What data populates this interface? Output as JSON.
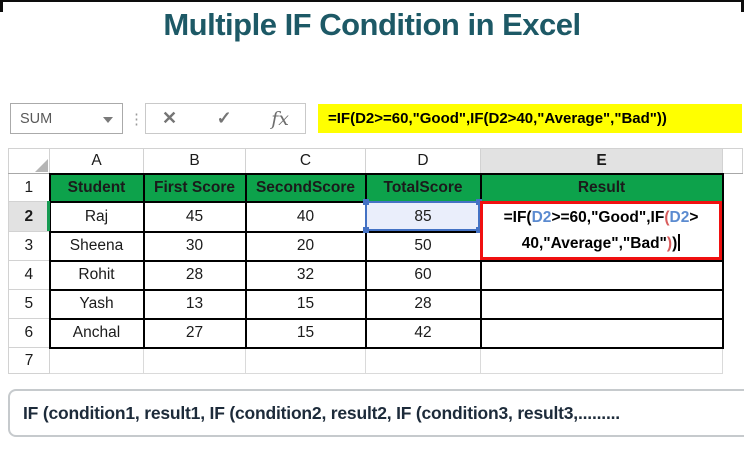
{
  "title": "Multiple IF Condition in Excel",
  "formula_bar": {
    "name_box_value": "SUM",
    "dots_separator": "⋮",
    "cancel_icon": "✕",
    "enter_icon": "✓",
    "fx_icon": "fx",
    "formula": "=IF(D2>=60,\"Good\",IF(D2>40,\"Average\",\"Bad\"))"
  },
  "grid": {
    "column_headers": [
      "A",
      "B",
      "C",
      "D",
      "E"
    ],
    "row_headers": [
      "1",
      "2",
      "3",
      "4",
      "5",
      "6",
      "7"
    ],
    "header_row": [
      "Student",
      "First Score",
      "SecondScore",
      "TotalScore",
      "Result"
    ],
    "rows": [
      [
        "Raj",
        "45",
        "40",
        "85"
      ],
      [
        "Sheena",
        "30",
        "20",
        "50"
      ],
      [
        "Rohit",
        "28",
        "32",
        "60"
      ],
      [
        "Yash",
        "13",
        "15",
        "28"
      ],
      [
        "Anchal",
        "27",
        "15",
        "42"
      ]
    ],
    "active_cell": "E2",
    "referenced_cell": "D2",
    "cell_formula": {
      "line1": [
        {
          "t": "=IF(",
          "c": "k"
        },
        {
          "t": "D2",
          "c": "b"
        },
        {
          "t": ">=60,\"Good\",IF",
          "c": "k"
        },
        {
          "t": "(",
          "c": "r"
        },
        {
          "t": "D2",
          "c": "b"
        },
        {
          "t": ">",
          "c": "k"
        }
      ],
      "line2": [
        {
          "t": "40,\"Average\",\"Bad\"",
          "c": "k"
        },
        {
          "t": ")",
          "c": "r"
        },
        {
          "t": ")",
          "c": "k"
        }
      ]
    }
  },
  "footer_note": "IF (condition1, result1, IF (condition2, result2, IF (condition3, result3,.........",
  "colors": {
    "title_teal": "#1D5966",
    "header_green": "#0DA24B",
    "highlight_yellow": "#FFFF00",
    "reference_blue": "#4472C4",
    "reference_fill": "#EAEEFB",
    "active_border_red": "#F01010",
    "selected_header_text_green": "#1E7145"
  }
}
